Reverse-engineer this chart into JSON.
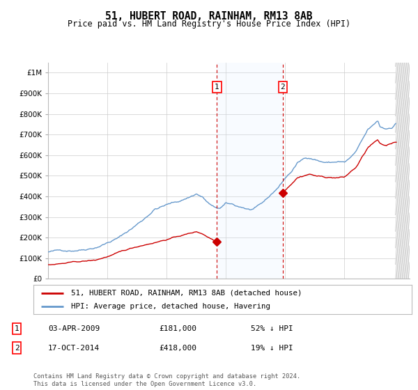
{
  "title": "51, HUBERT ROAD, RAINHAM, RM13 8AB",
  "subtitle": "Price paid vs. HM Land Registry's House Price Index (HPI)",
  "hpi_color": "#6699cc",
  "price_color": "#cc0000",
  "marker1_year": 2009.25,
  "marker2_year": 2014.79,
  "marker1_price": 181000,
  "marker2_price": 418000,
  "legend_entry1": "51, HUBERT ROAD, RAINHAM, RM13 8AB (detached house)",
  "legend_entry2": "HPI: Average price, detached house, Havering",
  "table_row1": [
    "1",
    "03-APR-2009",
    "£181,000",
    "52% ↓ HPI"
  ],
  "table_row2": [
    "2",
    "17-OCT-2014",
    "£418,000",
    "19% ↓ HPI"
  ],
  "footnote": "Contains HM Land Registry data © Crown copyright and database right 2024.\nThis data is licensed under the Open Government Licence v3.0.",
  "xmin": 1995.0,
  "xmax": 2025.5,
  "ymin": 0,
  "ymax": 1050000,
  "background_color": "#ffffff",
  "grid_color": "#cccccc",
  "shade_color": "#ddeeff",
  "hatch_color": "#bbbbbb"
}
